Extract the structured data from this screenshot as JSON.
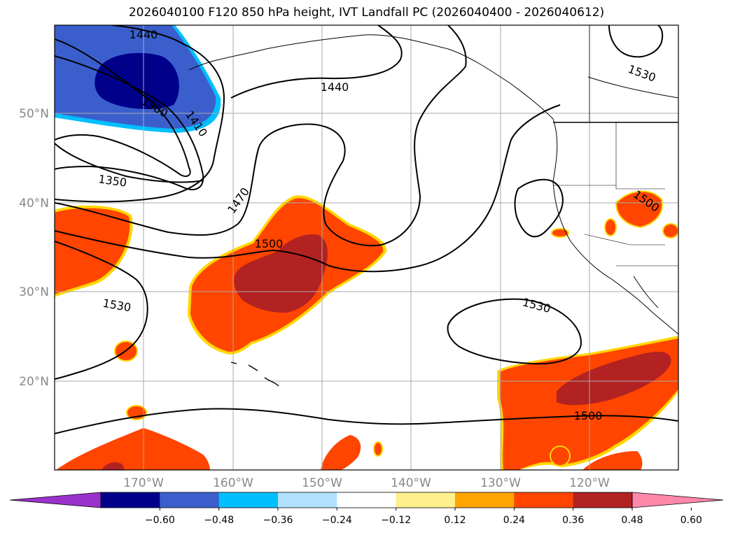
{
  "title": "2026040100 F120 850 hPa height, IVT Landfall PC (2026040400 - 2026040612)",
  "lat_labels": [
    "50°N",
    "40°N",
    "30°N",
    "20°N"
  ],
  "lon_labels": [
    "170°W",
    "160°W",
    "150°W",
    "140°W",
    "130°W",
    "120°W"
  ],
  "contour_labels": [
    "1440",
    "1380",
    "1410",
    "1440",
    "1350",
    "1470",
    "1500",
    "1530",
    "1530",
    "1530",
    "1500",
    "1500"
  ],
  "colorbar": {
    "ticks": [
      "−0.60",
      "−0.48",
      "−0.36",
      "−0.24",
      "−0.12",
      "0.12",
      "0.24",
      "0.36",
      "0.48",
      "0.60"
    ],
    "colors": [
      "#9932cc",
      "#00008b",
      "#3a5fcd",
      "#00bfff",
      "#b0e2ff",
      "#ffffff",
      "#fff08c",
      "#ffa500",
      "#ff4500",
      "#b22222",
      "#ff88aa"
    ]
  },
  "colors": {
    "neg_strong": "#00008b",
    "neg_mid": "#3a5fcd",
    "neg_edge": "#00bfff",
    "pos_mid": "#ff4500",
    "pos_strong": "#b22222",
    "pos_edge": "#ffd700",
    "grid": "#aaaaaa",
    "contour": "#000000"
  }
}
